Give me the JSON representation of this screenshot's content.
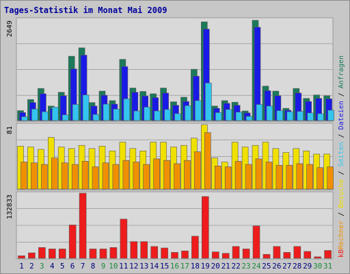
{
  "chart_data": {
    "type": "bar",
    "title": "Tages-Statistik im Monat Mai 2009",
    "categories": [
      "1",
      "2",
      "3",
      "4",
      "5",
      "6",
      "7",
      "8",
      "9",
      "10",
      "11",
      "12",
      "13",
      "14",
      "15",
      "16",
      "17",
      "18",
      "19",
      "20",
      "21",
      "22",
      "23",
      "24",
      "25",
      "26",
      "27",
      "28",
      "29",
      "30",
      "31"
    ],
    "weekend_days": [
      "3",
      "9",
      "10",
      "16",
      "17",
      "23",
      "24",
      "30",
      "31"
    ],
    "panels": [
      {
        "max_label": "2649",
        "ymax": 2649,
        "series": [
          {
            "name": "Anfragen",
            "color": "#1a7a5a",
            "values": [
              260,
              550,
              840,
              380,
              740,
              1680,
              1900,
              470,
              770,
              520,
              1600,
              850,
              760,
              700,
              850,
              490,
              610,
              1340,
              2580,
              380,
              520,
              480,
              250,
              2620,
              900,
              770,
              320,
              840,
              580,
              670,
              650
            ]
          },
          {
            "name": "Dateien",
            "color": "#1a1ae6",
            "values": [
              210,
              470,
              700,
              310,
              650,
              1350,
              1710,
              380,
              660,
              430,
              1410,
              740,
              640,
              600,
              720,
              400,
              500,
              1160,
              2390,
              320,
              450,
              400,
              200,
              2440,
              780,
              650,
              270,
              720,
              500,
              580,
              570
            ]
          },
          {
            "name": "Seiten",
            "color": "#33c4f0",
            "values": [
              100,
              300,
              230,
              350,
              150,
              420,
              670,
              160,
              430,
              300,
              570,
              250,
              350,
              250,
              290,
              180,
              390,
              520,
              980,
              210,
              290,
              220,
              110,
              420,
              380,
              260,
              230,
              240,
              200,
              180,
              270
            ]
          }
        ]
      },
      {
        "max_label": "81",
        "ymax": 81,
        "series": [
          {
            "name": "Besuche",
            "color": "#f0e000",
            "values": [
              54,
              53,
              50,
              65,
              53,
              51,
              55,
              51,
              54,
              48,
              59,
              51,
              48,
              59,
              59,
              53,
              55,
              64,
              81,
              39,
              34,
              59,
              53,
              55,
              59,
              51,
              46,
              51,
              48,
              44,
              44
            ]
          },
          {
            "name": "Rechner",
            "color": "#f09000",
            "values": [
              34,
              33,
              31,
              39,
              33,
              31,
              35,
              28,
              33,
              31,
              36,
              34,
              31,
              38,
              36,
              32,
              36,
              47,
              71,
              29,
              28,
              35,
              31,
              38,
              34,
              30,
              30,
              32,
              31,
              27,
              28
            ]
          }
        ]
      },
      {
        "max_label": "132833",
        "ymax": 132833,
        "series": [
          {
            "name": "kB",
            "color": "#ee1c1c",
            "values": [
              5000,
              11000,
              22000,
              19000,
              19000,
              68000,
              132833,
              19000,
              19000,
              22000,
              80000,
              34000,
              34000,
              24000,
              21000,
              12000,
              15000,
              45000,
              126000,
              13000,
              10000,
              24000,
              19000,
              66000,
              8000,
              24000,
              12000,
              24000,
              14000,
              3000,
              16000
            ]
          }
        ]
      }
    ],
    "legend_order": [
      "Anfragen",
      "Dateien",
      "Seiten",
      "Besuche",
      "Rechner",
      "kB"
    ],
    "legend_separator": "/"
  }
}
